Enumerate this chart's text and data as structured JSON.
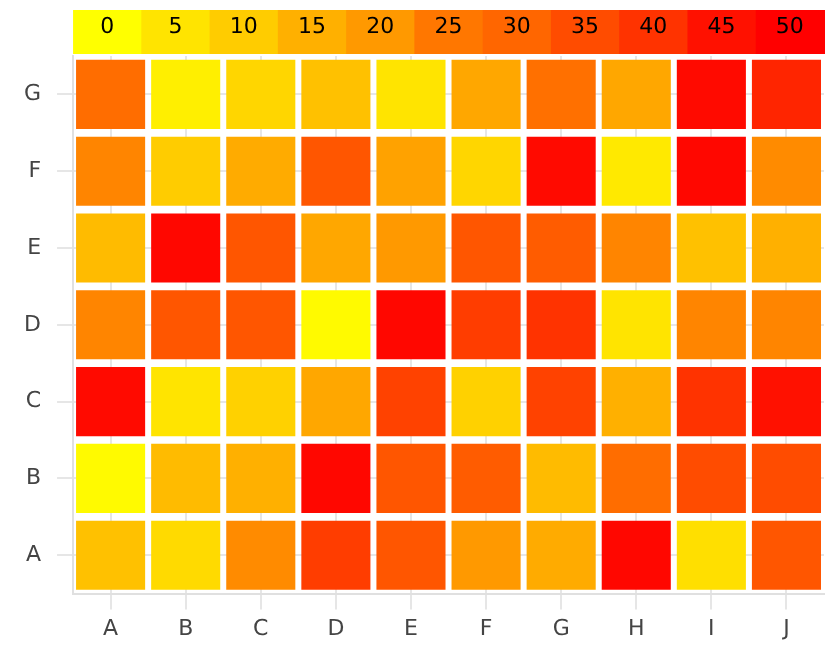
{
  "chart_data": {
    "type": "heatmap",
    "categories": [
      "A",
      "B",
      "C",
      "D",
      "E",
      "F",
      "G",
      "H",
      "I",
      "J"
    ],
    "y_categories": [
      "G",
      "F",
      "E",
      "D",
      "C",
      "B",
      "A"
    ],
    "cells": [
      [
        28,
        3,
        8,
        12,
        5,
        17,
        27,
        17,
        47,
        42
      ],
      [
        23,
        10,
        16,
        33,
        18,
        8,
        47,
        4,
        48,
        22
      ],
      [
        13,
        48,
        33,
        17,
        20,
        33,
        32,
        23,
        12,
        15
      ],
      [
        23,
        33,
        33,
        1,
        48,
        38,
        40,
        5,
        23,
        23
      ],
      [
        47,
        5,
        9,
        17,
        37,
        9,
        37,
        15,
        40,
        45
      ],
      [
        1,
        13,
        15,
        48,
        33,
        32,
        13,
        28,
        35,
        35
      ],
      [
        12,
        7,
        22,
        38,
        33,
        20,
        16,
        48,
        6,
        33
      ]
    ],
    "clim": [
      -2.5,
      52.5
    ],
    "cticks": [
      0,
      5,
      10,
      15,
      20,
      25,
      30,
      35,
      40,
      45,
      50
    ],
    "grid": true
  }
}
